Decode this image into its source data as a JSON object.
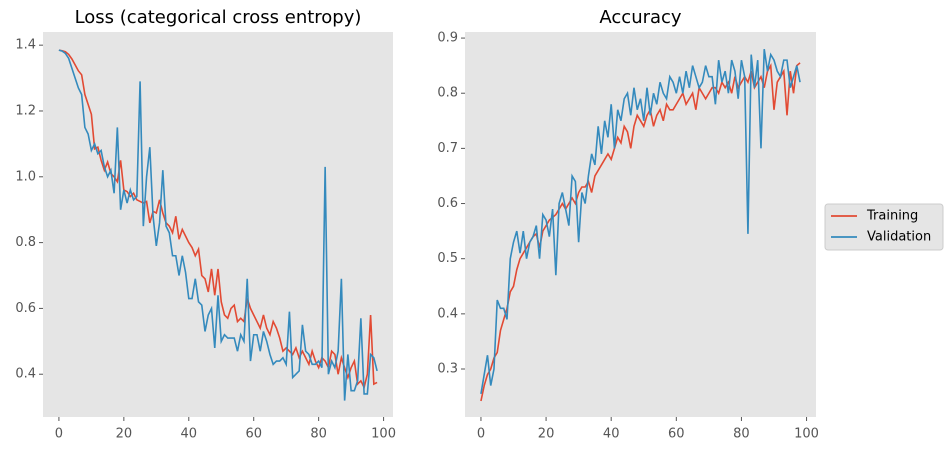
{
  "chart_data": [
    {
      "type": "line",
      "title": "Loss (categorical cross entropy)",
      "x": [
        0,
        1,
        2,
        3,
        4,
        5,
        6,
        7,
        8,
        9,
        10,
        11,
        12,
        13,
        14,
        15,
        16,
        17,
        18,
        19,
        20,
        21,
        22,
        23,
        24,
        25,
        26,
        27,
        28,
        29,
        30,
        31,
        32,
        33,
        34,
        35,
        36,
        37,
        38,
        39,
        40,
        41,
        42,
        43,
        44,
        45,
        46,
        47,
        48,
        49,
        50,
        51,
        52,
        53,
        54,
        55,
        56,
        57,
        58,
        59,
        60,
        61,
        62,
        63,
        64,
        65,
        66,
        67,
        68,
        69,
        70,
        71,
        72,
        73,
        74,
        75,
        76,
        77,
        78,
        79,
        80,
        81,
        82,
        83,
        84,
        85,
        86,
        87,
        88,
        89,
        90,
        91,
        92,
        93,
        94,
        95,
        96,
        97,
        98
      ],
      "series": [
        {
          "color": "#E24A33",
          "values": [
            1.385,
            1.383,
            1.38,
            1.372,
            1.358,
            1.34,
            1.322,
            1.31,
            1.25,
            1.22,
            1.19,
            1.085,
            1.09,
            1.05,
            1.02,
            1.045,
            1.01,
            1.0,
            0.985,
            1.05,
            0.96,
            0.955,
            0.94,
            0.95,
            0.93,
            0.925,
            0.92,
            0.925,
            0.86,
            0.895,
            0.89,
            0.93,
            0.89,
            0.86,
            0.85,
            0.83,
            0.88,
            0.81,
            0.84,
            0.82,
            0.8,
            0.785,
            0.76,
            0.78,
            0.7,
            0.69,
            0.65,
            0.72,
            0.64,
            0.72,
            0.62,
            0.58,
            0.57,
            0.6,
            0.61,
            0.56,
            0.57,
            0.56,
            0.63,
            0.6,
            0.58,
            0.56,
            0.54,
            0.58,
            0.54,
            0.52,
            0.56,
            0.54,
            0.51,
            0.47,
            0.48,
            0.47,
            0.46,
            0.48,
            0.45,
            0.47,
            0.45,
            0.43,
            0.47,
            0.44,
            0.42,
            0.45,
            0.44,
            0.42,
            0.47,
            0.46,
            0.4,
            0.45,
            0.42,
            0.39,
            0.42,
            0.44,
            0.37,
            0.38,
            0.36,
            0.4,
            0.58,
            0.37,
            0.375
          ]
        },
        {
          "color": "#348ABD",
          "values": [
            1.385,
            1.382,
            1.375,
            1.36,
            1.33,
            1.3,
            1.27,
            1.25,
            1.15,
            1.13,
            1.08,
            1.1,
            1.07,
            1.08,
            1.03,
            1.0,
            1.02,
            0.95,
            1.15,
            0.9,
            0.96,
            0.92,
            0.96,
            0.93,
            0.94,
            1.29,
            0.85,
            1.0,
            1.09,
            0.88,
            0.79,
            0.86,
            1.02,
            0.85,
            0.83,
            0.76,
            0.76,
            0.7,
            0.76,
            0.71,
            0.63,
            0.63,
            0.69,
            0.62,
            0.61,
            0.53,
            0.58,
            0.6,
            0.48,
            0.64,
            0.5,
            0.52,
            0.51,
            0.51,
            0.51,
            0.47,
            0.52,
            0.5,
            0.69,
            0.44,
            0.52,
            0.52,
            0.47,
            0.53,
            0.5,
            0.46,
            0.43,
            0.44,
            0.44,
            0.45,
            0.43,
            0.59,
            0.39,
            0.4,
            0.41,
            0.55,
            0.47,
            0.46,
            0.43,
            0.43,
            0.44,
            0.42,
            1.03,
            0.4,
            0.44,
            0.42,
            0.47,
            0.69,
            0.32,
            0.46,
            0.35,
            0.35,
            0.38,
            0.57,
            0.34,
            0.34,
            0.46,
            0.45,
            0.41
          ]
        }
      ],
      "xlim": [
        -4.9,
        102.9
      ],
      "xticks": [
        0,
        20,
        40,
        60,
        80,
        100
      ],
      "ylim": [
        0.27,
        1.44
      ],
      "yticks": [
        0.4,
        0.6,
        0.8,
        {
          "value": 1,
          "label": "1.0"
        },
        1.2,
        1.4
      ],
      "grid": false
    },
    {
      "type": "line",
      "title": "Accuracy",
      "x": [
        0,
        1,
        2,
        3,
        4,
        5,
        6,
        7,
        8,
        9,
        10,
        11,
        12,
        13,
        14,
        15,
        16,
        17,
        18,
        19,
        20,
        21,
        22,
        23,
        24,
        25,
        26,
        27,
        28,
        29,
        30,
        31,
        32,
        33,
        34,
        35,
        36,
        37,
        38,
        39,
        40,
        41,
        42,
        43,
        44,
        45,
        46,
        47,
        48,
        49,
        50,
        51,
        52,
        53,
        54,
        55,
        56,
        57,
        58,
        59,
        60,
        61,
        62,
        63,
        64,
        65,
        66,
        67,
        68,
        69,
        70,
        71,
        72,
        73,
        74,
        75,
        76,
        77,
        78,
        79,
        80,
        81,
        82,
        83,
        84,
        85,
        86,
        87,
        88,
        89,
        90,
        91,
        92,
        93,
        94,
        95,
        96,
        97,
        98
      ],
      "series": [
        {
          "name": "Training",
          "color": "#E24A33",
          "values": [
            0.242,
            0.27,
            0.29,
            0.3,
            0.32,
            0.33,
            0.37,
            0.39,
            0.41,
            0.44,
            0.45,
            0.48,
            0.5,
            0.51,
            0.52,
            0.53,
            0.54,
            0.545,
            0.52,
            0.55,
            0.56,
            0.57,
            0.575,
            0.58,
            0.59,
            0.6,
            0.59,
            0.6,
            0.61,
            0.6,
            0.62,
            0.63,
            0.63,
            0.64,
            0.62,
            0.65,
            0.66,
            0.67,
            0.68,
            0.69,
            0.68,
            0.7,
            0.72,
            0.71,
            0.74,
            0.73,
            0.7,
            0.74,
            0.76,
            0.75,
            0.74,
            0.76,
            0.77,
            0.74,
            0.76,
            0.77,
            0.75,
            0.78,
            0.77,
            0.77,
            0.78,
            0.79,
            0.8,
            0.78,
            0.79,
            0.8,
            0.77,
            0.81,
            0.8,
            0.79,
            0.8,
            0.81,
            0.81,
            0.8,
            0.82,
            0.81,
            0.82,
            0.8,
            0.83,
            0.81,
            0.82,
            0.83,
            0.82,
            0.84,
            0.81,
            0.82,
            0.83,
            0.81,
            0.84,
            0.85,
            0.77,
            0.82,
            0.83,
            0.84,
            0.76,
            0.84,
            0.8,
            0.85,
            0.855
          ]
        },
        {
          "name": "Validation",
          "color": "#348ABD",
          "values": [
            0.255,
            0.29,
            0.325,
            0.27,
            0.3,
            0.425,
            0.41,
            0.41,
            0.39,
            0.5,
            0.53,
            0.55,
            0.51,
            0.55,
            0.5,
            0.53,
            0.54,
            0.56,
            0.5,
            0.58,
            0.57,
            0.54,
            0.59,
            0.47,
            0.6,
            0.62,
            0.59,
            0.56,
            0.65,
            0.64,
            0.53,
            0.62,
            0.6,
            0.65,
            0.69,
            0.67,
            0.74,
            0.69,
            0.75,
            0.72,
            0.78,
            0.7,
            0.77,
            0.75,
            0.79,
            0.8,
            0.76,
            0.81,
            0.77,
            0.79,
            0.75,
            0.81,
            0.76,
            0.8,
            0.78,
            0.82,
            0.8,
            0.79,
            0.83,
            0.82,
            0.8,
            0.83,
            0.8,
            0.84,
            0.81,
            0.85,
            0.83,
            0.81,
            0.82,
            0.85,
            0.83,
            0.83,
            0.78,
            0.86,
            0.82,
            0.84,
            0.8,
            0.86,
            0.84,
            0.79,
            0.86,
            0.83,
            0.545,
            0.87,
            0.81,
            0.86,
            0.7,
            0.88,
            0.84,
            0.87,
            0.86,
            0.84,
            0.83,
            0.86,
            0.86,
            0.81,
            0.83,
            0.85,
            0.82
          ]
        }
      ],
      "xlim": [
        -4.9,
        102.9
      ],
      "xticks": [
        0,
        20,
        40,
        60,
        80,
        100
      ],
      "ylim": [
        0.213,
        0.911
      ],
      "yticks": [
        0.3,
        0.4,
        0.5,
        0.6,
        0.7,
        0.8,
        0.9
      ],
      "grid": false,
      "legend": "outside right"
    }
  ]
}
